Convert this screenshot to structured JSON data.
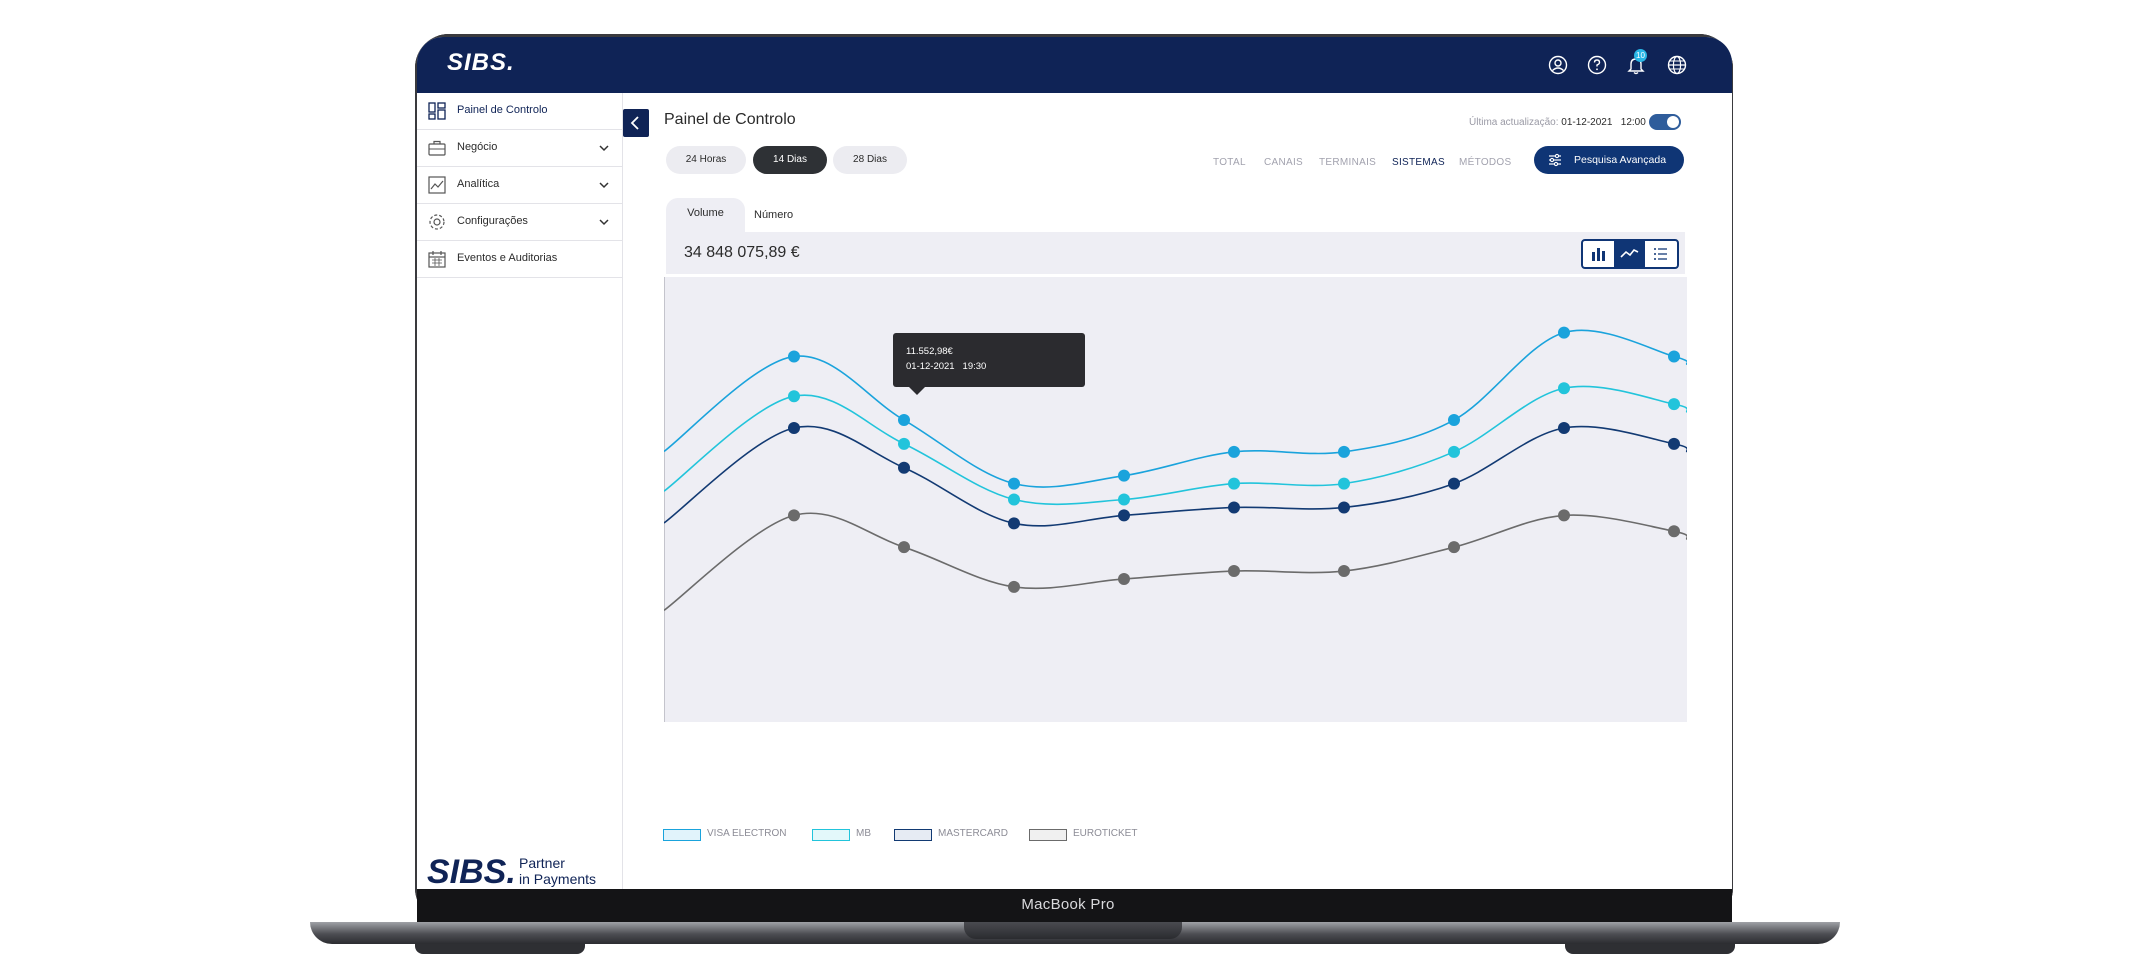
{
  "device": {
    "label": "MacBook Pro"
  },
  "topbar": {
    "logo": "SIBS.",
    "icons": [
      "user-icon",
      "help-icon",
      "bell-icon",
      "globe-icon"
    ],
    "notification_count": "10"
  },
  "sidebar": {
    "items": [
      {
        "label": "Painel de Controlo",
        "icon": "dashboard-icon",
        "expandable": false,
        "active": true
      },
      {
        "label": "Negócio",
        "icon": "briefcase-icon",
        "expandable": true,
        "active": false
      },
      {
        "label": "Analítica",
        "icon": "analytics-icon",
        "expandable": true,
        "active": false
      },
      {
        "label": "Configurações",
        "icon": "settings-icon",
        "expandable": true,
        "active": false
      },
      {
        "label": "Eventos e Auditorias",
        "icon": "calendar-icon",
        "expandable": false,
        "active": false
      }
    ],
    "footer": {
      "logo": "SIBS.",
      "tagline_line1": "Partner",
      "tagline_line2": "in Payments"
    }
  },
  "main": {
    "title": "Painel de Controlo",
    "last_update_label": "Última actualização:",
    "last_update_date": "01-12-2021",
    "last_update_time": "12:00",
    "auto_refresh_on": true,
    "periods": [
      "24 Horas",
      "14 Dias",
      "28 Dias"
    ],
    "active_period": "14 Dias",
    "view_tabs": [
      "TOTAL",
      "CANAIS",
      "TERMINAIS",
      "SISTEMAS",
      "MÉTODOS"
    ],
    "active_view_tab": "SISTEMAS",
    "advanced_search_label": "Pesquisa Avançada",
    "metric_tabs": [
      "Volume",
      "Número"
    ],
    "active_metric": "Volume",
    "total_value": "34 848 075,89 €",
    "chart_modes": [
      "bar-chart-icon",
      "line-chart-icon",
      "list-icon"
    ],
    "active_chart_mode": "line-chart-icon"
  },
  "tooltip": {
    "value": "11.552,98€",
    "date": "01-12-2021",
    "time": "19:30"
  },
  "colors": {
    "navy": "#0f2356",
    "visa_electron": "#1aa3dc",
    "mb": "#22c4db",
    "mastercard": "#123a73",
    "euroticket": "#6b6b6b",
    "chart_bg": "#eeeef4"
  },
  "chart_data": {
    "type": "line",
    "title": "",
    "xlabel": "",
    "ylabel": "",
    "x": [
      1,
      2,
      3,
      4,
      5,
      6,
      7,
      8,
      9
    ],
    "series": [
      {
        "name": "VISA ELECTRON",
        "values": [
          26,
          18,
          10,
          11,
          14,
          14,
          18,
          29,
          26
        ]
      },
      {
        "name": "MB",
        "values": [
          21,
          15,
          8,
          8,
          10,
          10,
          14,
          22,
          20
        ]
      },
      {
        "name": "MASTERCARD",
        "values": [
          17,
          12,
          5,
          6,
          7,
          7,
          10,
          17,
          15
        ]
      },
      {
        "name": "EUROTICKET",
        "values": [
          6,
          2,
          -3,
          -2,
          -1,
          -1,
          2,
          6,
          4
        ]
      }
    ],
    "legend": "bottom-left",
    "grid": false
  }
}
